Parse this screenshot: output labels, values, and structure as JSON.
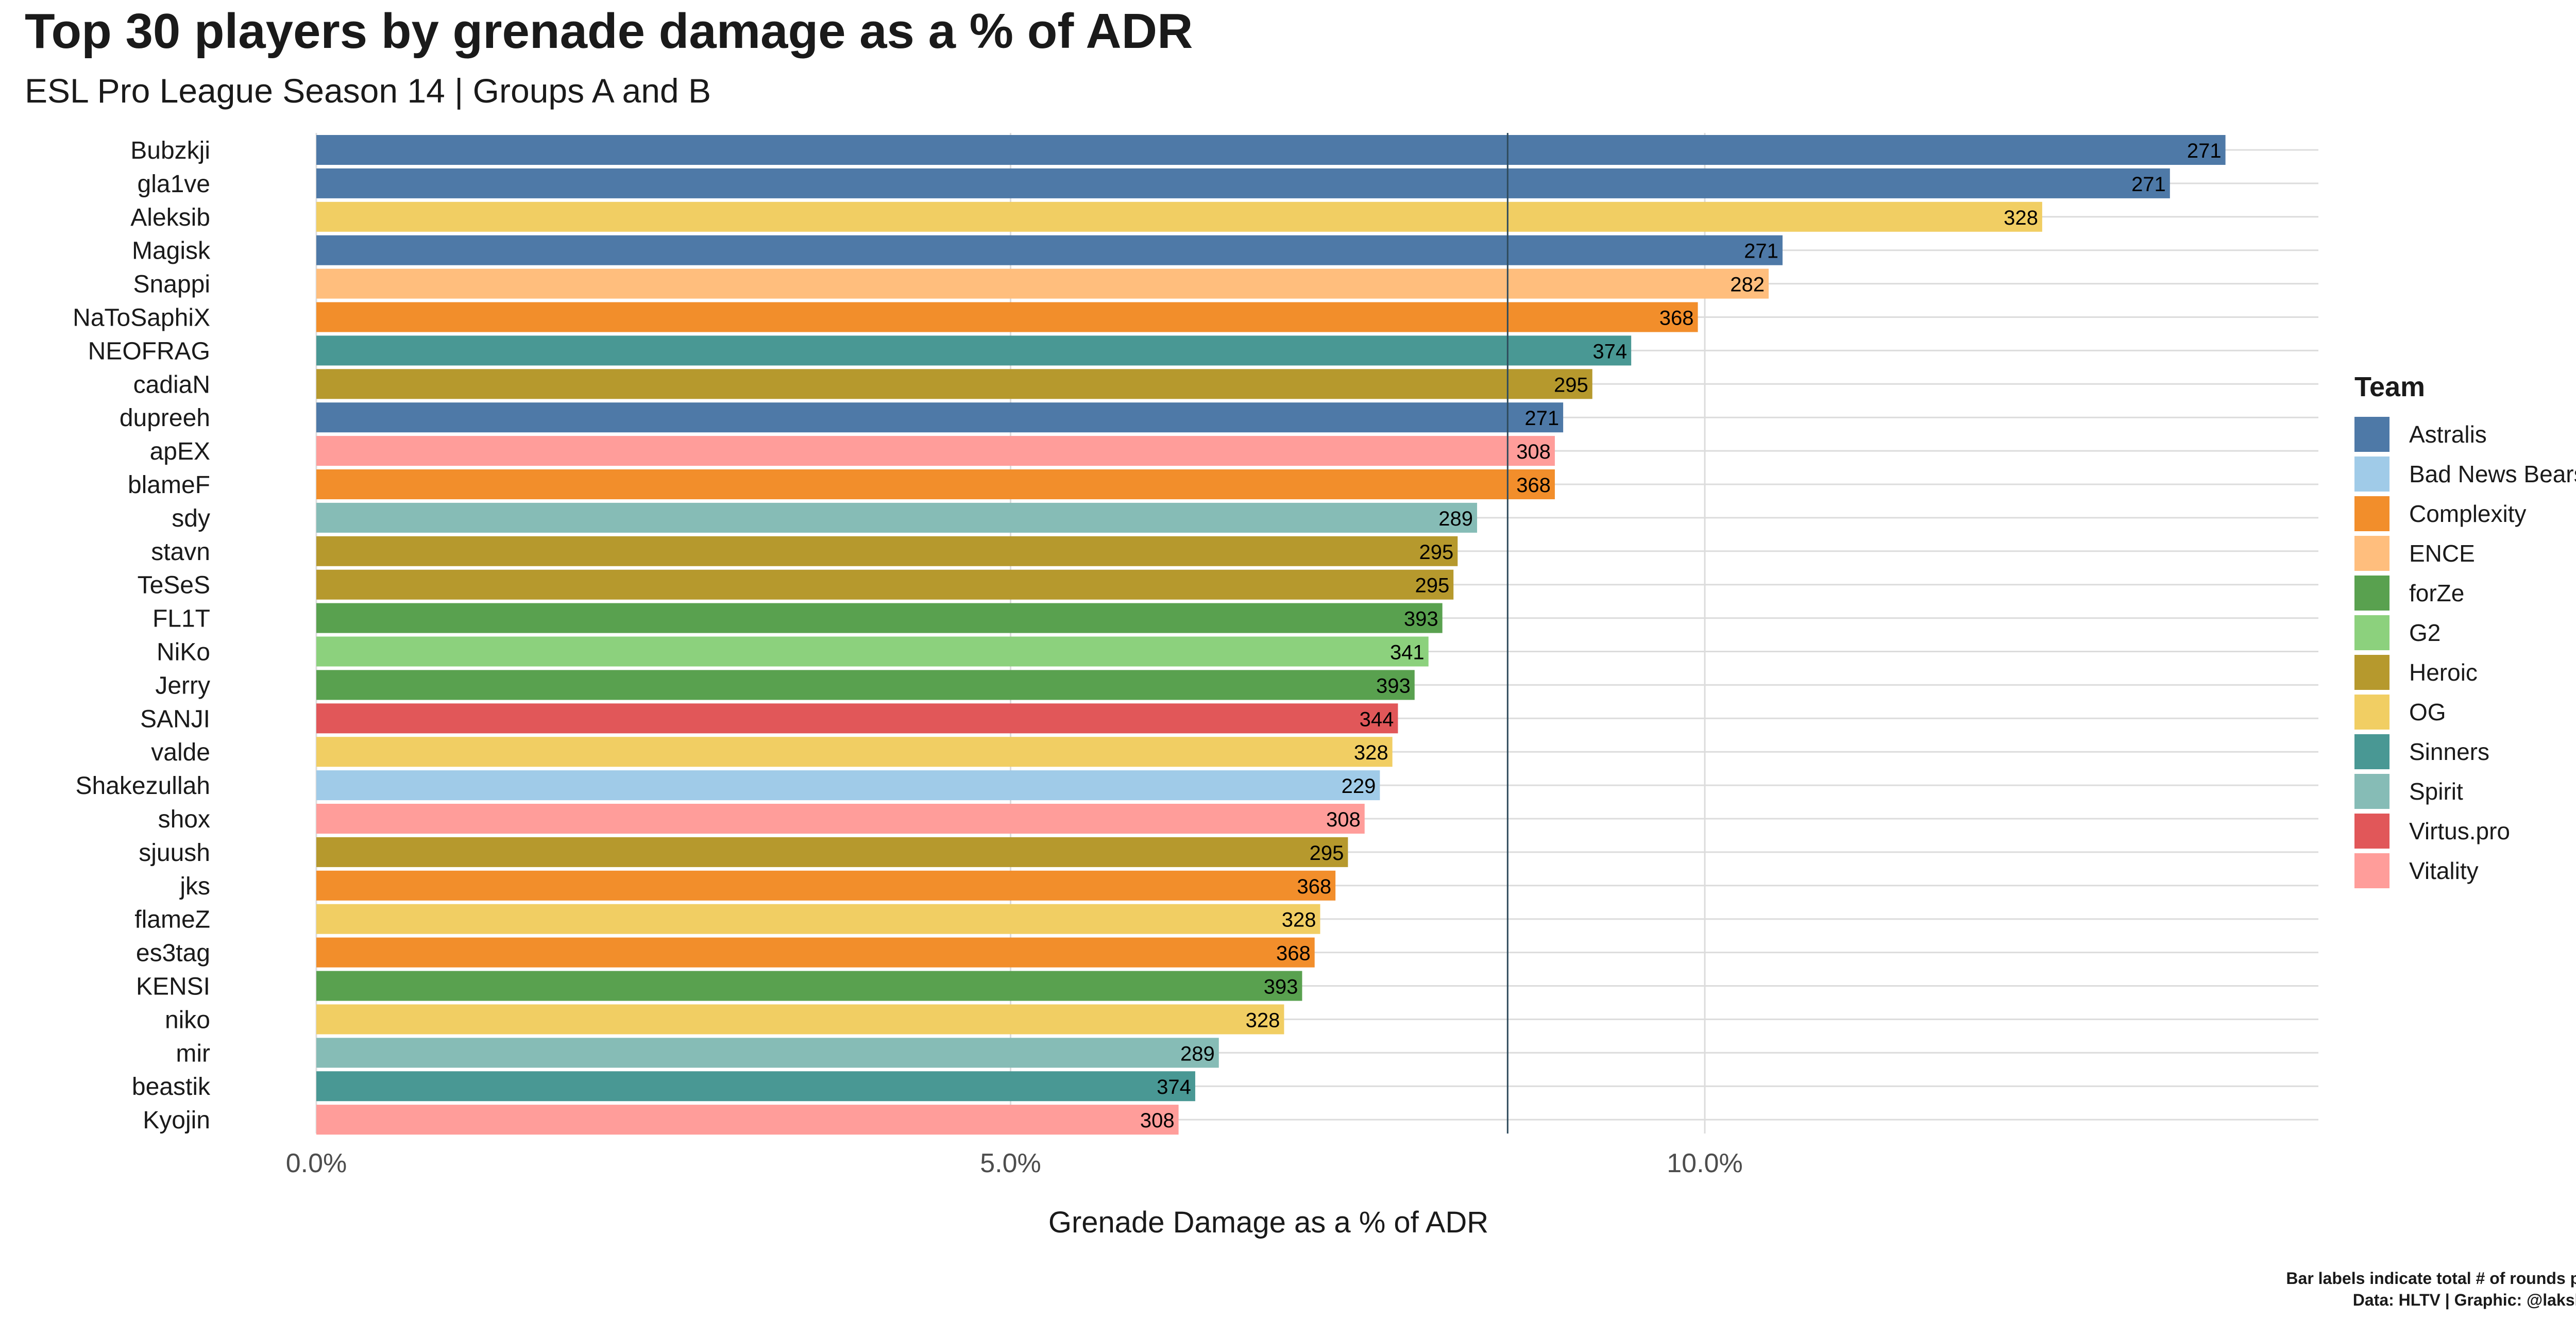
{
  "chart_data": {
    "type": "bar",
    "orientation": "horizontal",
    "title": "Top 30 players by grenade damage as a % of ADR",
    "subtitle": "ESL Pro League Season 14 | Groups A and B",
    "xlabel": "Grenade Damage as a % of ADR",
    "ylabel": "",
    "xlim": [
      0,
      14.5
    ],
    "x_ticks": [
      0,
      5,
      10
    ],
    "x_tick_labels": [
      "0.0%",
      "5.0%",
      "10.0%"
    ],
    "reference_line": 8.58,
    "grid": true,
    "legend_title": "Team",
    "legend_position": "right",
    "caption": [
      "Bar labels indicate total # of rounds played",
      "Data: HLTV | Graphic: @lakshyaag"
    ],
    "teams": [
      {
        "name": "Astralis",
        "color": "#4e79a7"
      },
      {
        "name": "Bad News Bears",
        "color": "#a0cbe8"
      },
      {
        "name": "Complexity",
        "color": "#f28e2b"
      },
      {
        "name": "ENCE",
        "color": "#ffbe7d"
      },
      {
        "name": "forZe",
        "color": "#59a14f"
      },
      {
        "name": "G2",
        "color": "#8cd17d"
      },
      {
        "name": "Heroic",
        "color": "#b6992d"
      },
      {
        "name": "OG",
        "color": "#f1ce63"
      },
      {
        "name": "Sinners",
        "color": "#499894"
      },
      {
        "name": "Spirit",
        "color": "#86bcb6"
      },
      {
        "name": "Virtus.pro",
        "color": "#e15759"
      },
      {
        "name": "Vitality",
        "color": "#ff9d9a"
      }
    ],
    "players": [
      {
        "name": "Bubzkji",
        "team": "Astralis",
        "value": 13.75,
        "rounds": 271
      },
      {
        "name": "gla1ve",
        "team": "Astralis",
        "value": 13.35,
        "rounds": 271
      },
      {
        "name": "Aleksib",
        "team": "OG",
        "value": 12.43,
        "rounds": 328
      },
      {
        "name": "Magisk",
        "team": "Astralis",
        "value": 10.56,
        "rounds": 271
      },
      {
        "name": "Snappi",
        "team": "ENCE",
        "value": 10.46,
        "rounds": 282
      },
      {
        "name": "NaToSaphiX",
        "team": "Complexity",
        "value": 9.95,
        "rounds": 368
      },
      {
        "name": "NEOFRAG",
        "team": "Sinners",
        "value": 9.47,
        "rounds": 374
      },
      {
        "name": "cadiaN",
        "team": "Heroic",
        "value": 9.19,
        "rounds": 295
      },
      {
        "name": "dupreeh",
        "team": "Astralis",
        "value": 8.98,
        "rounds": 271
      },
      {
        "name": "apEX",
        "team": "Vitality",
        "value": 8.92,
        "rounds": 308
      },
      {
        "name": "blameF",
        "team": "Complexity",
        "value": 8.92,
        "rounds": 368
      },
      {
        "name": "sdy",
        "team": "Spirit",
        "value": 8.36,
        "rounds": 289
      },
      {
        "name": "stavn",
        "team": "Heroic",
        "value": 8.22,
        "rounds": 295
      },
      {
        "name": "TeSeS",
        "team": "Heroic",
        "value": 8.19,
        "rounds": 295
      },
      {
        "name": "FL1T",
        "team": "forZe",
        "value": 8.11,
        "rounds": 393
      },
      {
        "name": "NiKo",
        "team": "G2",
        "value": 8.01,
        "rounds": 341
      },
      {
        "name": "Jerry",
        "team": "forZe",
        "value": 7.91,
        "rounds": 393
      },
      {
        "name": "SANJI",
        "team": "Virtus.pro",
        "value": 7.79,
        "rounds": 344
      },
      {
        "name": "valde",
        "team": "OG",
        "value": 7.75,
        "rounds": 328
      },
      {
        "name": "Shakezullah",
        "team": "Bad News Bears",
        "value": 7.66,
        "rounds": 229
      },
      {
        "name": "shox",
        "team": "Vitality",
        "value": 7.55,
        "rounds": 308
      },
      {
        "name": "sjuush",
        "team": "Heroic",
        "value": 7.43,
        "rounds": 295
      },
      {
        "name": "jks",
        "team": "Complexity",
        "value": 7.34,
        "rounds": 368
      },
      {
        "name": "flameZ",
        "team": "OG",
        "value": 7.23,
        "rounds": 328
      },
      {
        "name": "es3tag",
        "team": "Complexity",
        "value": 7.19,
        "rounds": 368
      },
      {
        "name": "KENSI",
        "team": "forZe",
        "value": 7.1,
        "rounds": 393
      },
      {
        "name": "niko",
        "team": "OG",
        "value": 6.97,
        "rounds": 328
      },
      {
        "name": "mir",
        "team": "Spirit",
        "value": 6.5,
        "rounds": 289
      },
      {
        "name": "beastik",
        "team": "Sinners",
        "value": 6.33,
        "rounds": 374
      },
      {
        "name": "Kyojin",
        "team": "Vitality",
        "value": 6.21,
        "rounds": 308
      }
    ]
  }
}
